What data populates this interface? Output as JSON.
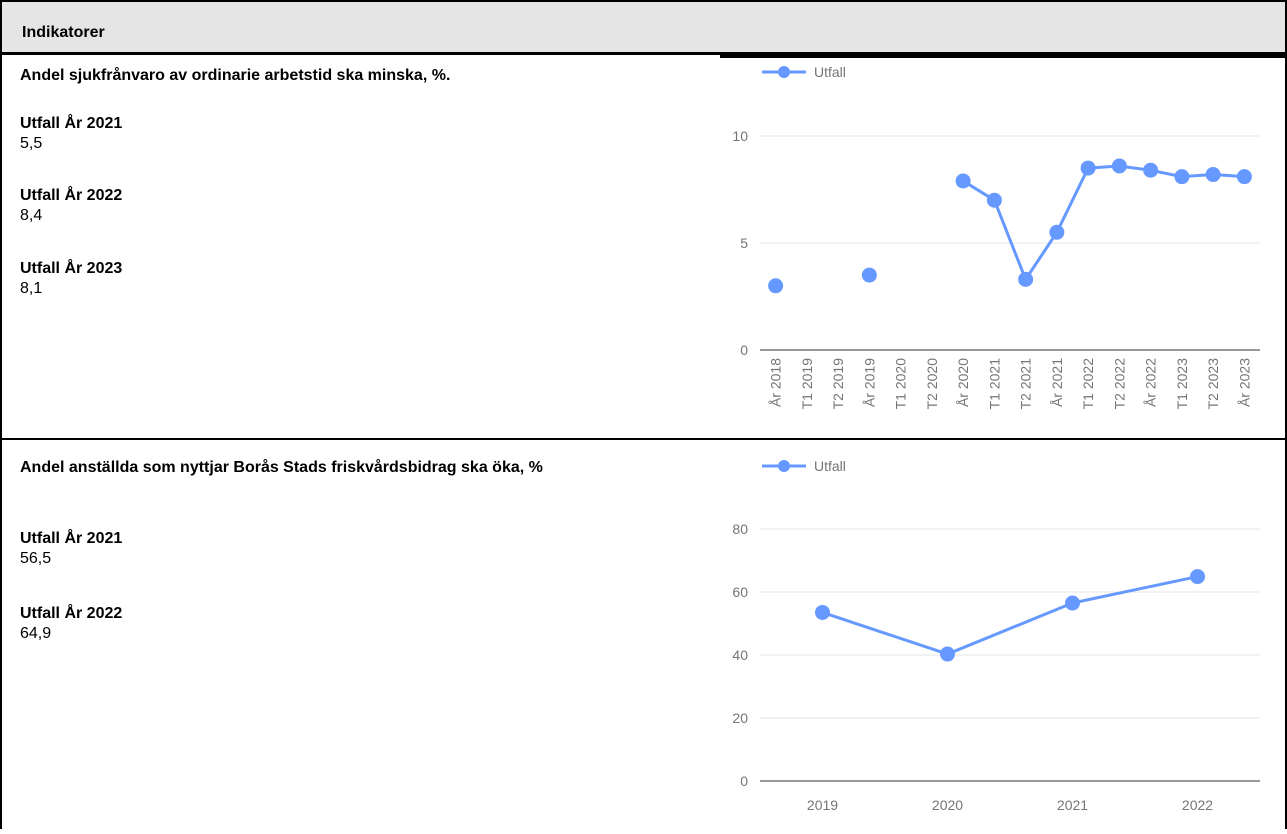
{
  "header": {
    "title": "Indikatorer"
  },
  "indicators": [
    {
      "title": "Andel sjukfrånvaro av ordinarie arbetstid ska minska, %.",
      "results": [
        {
          "label": "Utfall År 2021",
          "value": "5,5"
        },
        {
          "label": "Utfall År 2022",
          "value": "8,4"
        },
        {
          "label": "Utfall År 2023",
          "value": "8,1"
        }
      ]
    },
    {
      "title": "Andel anställda som nyttjar Borås Stads friskvårdsbidrag ska öka, %",
      "results": [
        {
          "label": "Utfall År 2021",
          "value": "56,5"
        },
        {
          "label": "Utfall År 2022",
          "value": "64,9"
        }
      ]
    }
  ],
  "chart_data": [
    {
      "type": "line",
      "legend": "Utfall",
      "legend_position": "top-left",
      "color": "#6699ff",
      "categories": [
        "År 2018",
        "T1 2019",
        "T2 2019",
        "År 2019",
        "T1 2020",
        "T2 2020",
        "År 2020",
        "T1 2021",
        "T2 2021",
        "År 2021",
        "T1 2022",
        "T2 2022",
        "År 2022",
        "T1 2023",
        "T2 2023",
        "År 2023"
      ],
      "values": [
        3.0,
        null,
        null,
        3.5,
        null,
        null,
        7.9,
        7.0,
        3.3,
        5.5,
        8.5,
        8.6,
        8.4,
        8.1,
        8.2,
        8.1
      ],
      "ylim": [
        0,
        10
      ],
      "yticks": [
        "0",
        "5",
        "10"
      ],
      "ytick_values": [
        0,
        5,
        10
      ],
      "grid": true
    },
    {
      "type": "line",
      "legend": "Utfall",
      "legend_position": "top-left",
      "color": "#6699ff",
      "categories": [
        "2019",
        "2020",
        "2021",
        "2022"
      ],
      "values": [
        53.5,
        40.3,
        56.5,
        64.9
      ],
      "ylim": [
        0,
        80
      ],
      "yticks": [
        "0",
        "20",
        "40",
        "60",
        "80"
      ],
      "ytick_values": [
        0,
        20,
        40,
        60,
        80
      ],
      "grid": true
    }
  ]
}
